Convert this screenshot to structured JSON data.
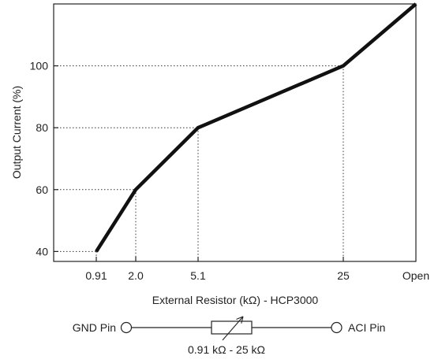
{
  "chart_data": {
    "type": "line",
    "title": "",
    "xlabel": "External Resistor (kΩ) - HCP3000",
    "ylabel": "Output Current (%)",
    "categories": [
      "0.91",
      "2.0",
      "5.1",
      "25",
      "Open"
    ],
    "y_ticks": [
      40,
      60,
      80,
      100
    ],
    "ylim": [
      20,
      120
    ],
    "grid": false,
    "series": [
      {
        "points": [
          {
            "x": "0.91",
            "y": 40
          },
          {
            "x": "2.0",
            "y": 60
          },
          {
            "x": "5.1",
            "y": 80
          },
          {
            "x": "25",
            "y": 100
          },
          {
            "x": "Open",
            "y": 120
          }
        ]
      }
    ],
    "reference_lines": "dotted drop lines from each point to both axes"
  },
  "circuit": {
    "left_pin": "GND Pin",
    "right_pin": "ACI Pin",
    "range_label": "0.91 kΩ - 25 kΩ"
  },
  "colors": {
    "line": "#111111",
    "axis": "#222222",
    "dotted": "#333333"
  }
}
